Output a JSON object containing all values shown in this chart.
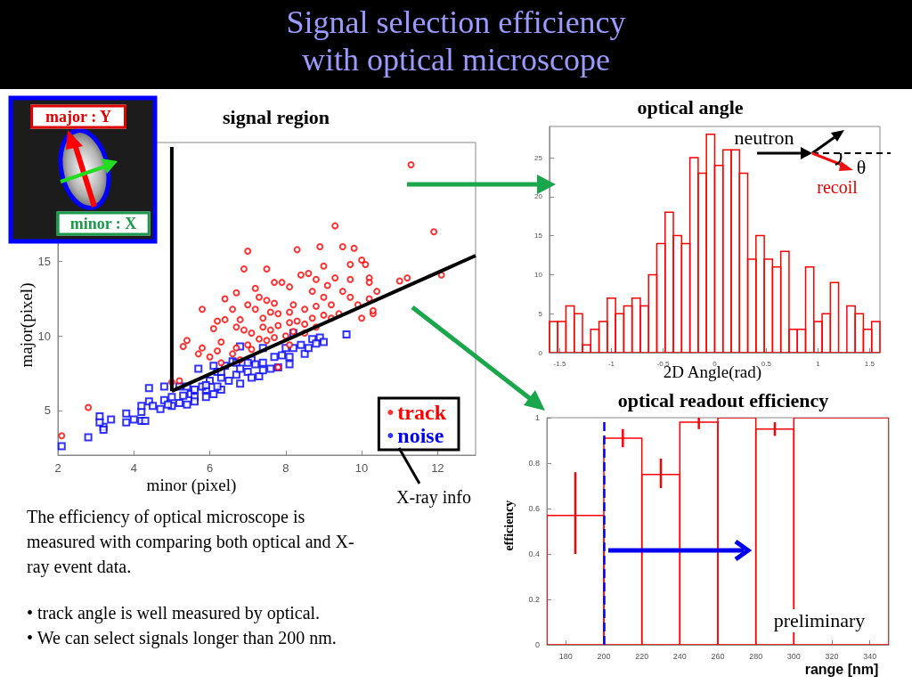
{
  "chart_data": [
    {
      "type": "other",
      "title": "Signal selection efficiency with optical microscope",
      "annotations": [
        "The efficiency of optical microscope is measured with comparing both optical and X-ray event data.",
        "• track angle is well measured by optical.",
        "• We can select signals longer than 200 nm."
      ]
    },
    {
      "type": "scatter",
      "title": "signal region",
      "xlabel": "minor (pixel)",
      "ylabel": "major(pixel)",
      "xlim": [
        2,
        13
      ],
      "ylim": [
        2,
        23
      ],
      "xticks": [
        2,
        4,
        6,
        8,
        10,
        12
      ],
      "yticks": [
        5,
        10,
        15
      ],
      "legend": "bottom right",
      "annotations": [
        "major : Y",
        "minor : X",
        "X-ray info"
      ],
      "series": [
        {
          "name": "track",
          "color": "#ff0000",
          "marker": "circle",
          "x": [
            11.3,
            9.3,
            11.9,
            7.0,
            8.3,
            8.9,
            9.5,
            9.8,
            6.9,
            7.5,
            10.0,
            10.1,
            9.7,
            9.0,
            12.1,
            11.0,
            11.2,
            10.2,
            10.2,
            10.4,
            10.2,
            10.0,
            10.3,
            5.8,
            5.3,
            5.4,
            5.7,
            5.8,
            5.0,
            5.2,
            2.8,
            2.1,
            6.1,
            6.4,
            6.7,
            7.2,
            7.7,
            7.9,
            8.1,
            8.4,
            8.6,
            8.8,
            9.3,
            9.7,
            9.1,
            9.5,
            9.7,
            9.2,
            8.8,
            8.5,
            8.2,
            8.1,
            7.8,
            7.6,
            7.4,
            7.2,
            7.0,
            6.8,
            6.6,
            6.4,
            6.2,
            6.7,
            6.9,
            7.1,
            7.4,
            7.6,
            7.8,
            8.1,
            8.3,
            8.5,
            8.8,
            9.0,
            9.4,
            9.2,
            6.3,
            6.7,
            7.0,
            7.3,
            7.5,
            7.7,
            8.0,
            8.2,
            6.6,
            7.1,
            6.0,
            6.3,
            6.2,
            6.8,
            7.8,
            8.1,
            8.5,
            8.7,
            9.0,
            9.9,
            7.3,
            7.5,
            7.7,
            8.7,
            10.3
          ],
          "values": [
            21.5,
            17.4,
            17.0,
            15.7,
            15.8,
            16.0,
            16.0,
            15.9,
            14.5,
            14.5,
            15.1,
            14.8,
            14.8,
            14.7,
            14.1,
            13.7,
            13.9,
            13.9,
            13.6,
            13.0,
            12.5,
            11.2,
            11.5,
            11.8,
            9.3,
            9.7,
            8.8,
            9.2,
            6.9,
            7.0,
            5.2,
            3.3,
            10.5,
            12.5,
            12.9,
            13.2,
            13.6,
            13.6,
            13.3,
            14.1,
            14.2,
            13.8,
            13.9,
            13.8,
            13.4,
            13.0,
            12.6,
            12.1,
            12.0,
            11.8,
            12.1,
            11.6,
            11.5,
            11.6,
            11.2,
            11.8,
            12.1,
            11.1,
            11.8,
            11.1,
            11.0,
            10.6,
            10.4,
            10.2,
            10.6,
            10.4,
            10.7,
            10.9,
            11.0,
            10.8,
            10.6,
            11.4,
            11.5,
            11.2,
            9.6,
            9.2,
            9.4,
            9.8,
            9.7,
            9.9,
            10.0,
            10.3,
            8.8,
            9.1,
            8.6,
            8.2,
            9.0,
            8.4,
            7.9,
            9.4,
            10.2,
            11.2,
            12.6,
            12.1,
            12.6,
            12.4,
            12.2,
            13.0,
            11.7
          ]
        },
        {
          "name": "noise",
          "color": "#0000ff",
          "marker": "square",
          "x": [
            9.6,
            2.1,
            2.8,
            3.1,
            3.2,
            3.2,
            3.4,
            3.1,
            3.8,
            3.8,
            4.0,
            4.2,
            4.2,
            4.3,
            4.2,
            4.4,
            4.4,
            4.5,
            4.7,
            4.8,
            4.8,
            5.0,
            5.0,
            5.2,
            5.4,
            5.5,
            5.4,
            5.6,
            5.7,
            5.9,
            5.9,
            6.0,
            6.1,
            6.1,
            6.3,
            6.3,
            6.4,
            6.5,
            6.7,
            6.6,
            6.8,
            6.8,
            7.0,
            7.1,
            7.1,
            7.3,
            7.4,
            7.4,
            7.4,
            7.6,
            7.7,
            7.8,
            7.9,
            8.1,
            8.1,
            8.2,
            8.0,
            8.2,
            8.5,
            8.6,
            8.7,
            8.9,
            9.0,
            8.8,
            8.4,
            5.2,
            5.3,
            5.6,
            5.8,
            6.2,
            6.3,
            6.7,
            6.8,
            7.0,
            7.2,
            6.2,
            5.6,
            4.9,
            5.9
          ],
          "values": [
            10.1,
            2.6,
            3.2,
            4.6,
            3.9,
            3.7,
            4.4,
            4.2,
            4.8,
            4.2,
            4.4,
            4.9,
            4.3,
            4.3,
            5.3,
            6.5,
            5.6,
            5.3,
            5.1,
            6.6,
            5.7,
            5.9,
            5.3,
            5.5,
            5.4,
            6.1,
            6.6,
            5.9,
            7.8,
            6.4,
            5.9,
            7.0,
            8.0,
            6.1,
            7.2,
            6.4,
            8.0,
            7.0,
            7.4,
            8.3,
            9.3,
            6.8,
            7.6,
            8.4,
            7.2,
            7.3,
            8.2,
            9.2,
            7.7,
            7.8,
            8.6,
            7.9,
            8.7,
            8.1,
            8.6,
            10.2,
            9.2,
            9.2,
            8.8,
            9.2,
            9.8,
            9.9,
            9.6,
            9.5,
            9.4,
            6.6,
            6.0,
            6.4,
            6.6,
            7.6,
            7.6,
            8.2,
            7.8,
            8.2,
            8.1,
            6.6,
            5.6,
            5.4,
            6.7
          ]
        },
        {
          "type": "line",
          "color": "#000000",
          "x": [
            5,
            5
          ],
          "values": [
            22.7,
            6.3
          ]
        },
        {
          "type": "line",
          "color": "#000000",
          "x": [
            5,
            13
          ],
          "values": [
            6.3,
            15.4
          ]
        }
      ]
    },
    {
      "type": "histogram",
      "title": "optical angle",
      "xlabel": "2D Angle(rad)",
      "color": "#ff0000",
      "xlim": [
        -1.6,
        1.6
      ],
      "ylim": [
        0,
        29
      ],
      "xticks": [
        -1.5,
        -1,
        -0.5,
        0,
        0.5,
        1,
        1.5
      ],
      "yticks": [
        0,
        5,
        10,
        15,
        20,
        25
      ],
      "annotations": [
        "neutron",
        "θ",
        "recoil"
      ],
      "bins": [
        -1.6,
        -1.52,
        -1.44,
        -1.36,
        -1.28,
        -1.2,
        -1.12,
        -1.04,
        -0.96,
        -0.88,
        -0.8,
        -0.72,
        -0.64,
        -0.56,
        -0.48,
        -0.4,
        -0.32,
        -0.24,
        -0.16,
        -0.08,
        0,
        0.08,
        0.16,
        0.24,
        0.32,
        0.4,
        0.48,
        0.56,
        0.64,
        0.72,
        0.8,
        0.88,
        0.96,
        1.04,
        1.12,
        1.2,
        1.28,
        1.36,
        1.44,
        1.52,
        1.6
      ],
      "values": [
        4,
        4,
        6,
        5,
        1,
        3,
        4,
        7,
        5,
        6,
        7,
        6,
        10,
        14,
        18,
        15,
        14,
        25,
        23,
        28,
        24,
        26,
        26,
        23,
        12,
        15,
        12,
        11,
        13,
        3,
        3,
        11,
        4,
        5,
        9,
        0,
        6,
        5,
        3,
        4
      ]
    },
    {
      "type": "histogram",
      "title": "optical readout efficiency",
      "xlabel": "range [nm]",
      "ylabel": "efficiency",
      "color": "#ff0000",
      "xlim": [
        170,
        350
      ],
      "ylim": [
        0,
        1
      ],
      "xticks": [
        180,
        200,
        220,
        240,
        260,
        280,
        300,
        320,
        340
      ],
      "yticks": [
        0,
        0.2,
        0.4,
        0.6,
        0.8,
        1
      ],
      "annotations": [
        "preliminary"
      ],
      "bins": [
        170,
        200,
        220,
        240,
        260,
        280,
        300,
        350
      ],
      "values": [
        0.57,
        0.91,
        0.75,
        0.98,
        1,
        0.95,
        1
      ],
      "errors": [
        [
          0.4,
          0.76
        ],
        [
          0.87,
          0.95
        ],
        [
          0.69,
          0.82
        ],
        [
          0.95,
          1
        ],
        null,
        [
          0.92,
          0.98
        ],
        null
      ],
      "ref_lines": [
        {
          "axis": "x",
          "value": 200,
          "color": "#0000ff",
          "line_style": "dashed"
        }
      ]
    }
  ]
}
